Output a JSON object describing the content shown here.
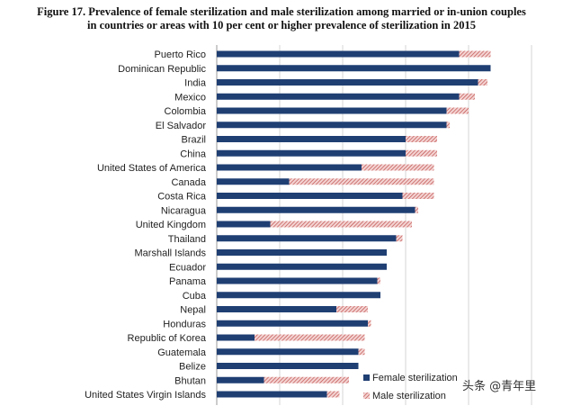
{
  "chart_data": {
    "type": "bar",
    "orientation": "horizontal",
    "stacked": true,
    "title_lines": [
      "Figure 17. Prevalence of female sterilization and male sterilization among married or in-union couples",
      "in countries or areas with 10 per cent or higher prevalence of sterilization in 2015"
    ],
    "categories": [
      "Puerto Rico",
      "Dominican Republic",
      "India",
      "Mexico",
      "Colombia",
      "El Salvador",
      "Brazil",
      "China",
      "United States of America",
      "Canada",
      "Costa Rica",
      "Nicaragua",
      "United Kingdom",
      "Thailand",
      "Marshall Islands",
      "Ecuador",
      "Panama",
      "Cuba",
      "Nepal",
      "Honduras",
      "Republic of Korea",
      "Guatemala",
      "Belize",
      "Bhutan",
      "United States Virgin Islands"
    ],
    "series": [
      {
        "name": "Female sterilization",
        "color": "#1f3f73",
        "values": [
          38.5,
          43.5,
          41.5,
          38.5,
          36.5,
          36.5,
          30.0,
          30.0,
          23.0,
          11.5,
          29.5,
          31.5,
          8.5,
          28.5,
          27.0,
          27.0,
          25.5,
          26.0,
          19.0,
          24.0,
          6.0,
          22.5,
          22.5,
          7.5,
          17.5
        ]
      },
      {
        "name": "Male sterilization",
        "color": "#c0504d",
        "values": [
          5.0,
          0.0,
          1.5,
          2.5,
          3.5,
          0.5,
          5.0,
          5.0,
          11.5,
          23.0,
          5.0,
          0.5,
          22.5,
          1.0,
          0.0,
          0.0,
          0.5,
          0.0,
          5.0,
          0.5,
          17.5,
          1.0,
          0.0,
          13.5,
          2.0
        ]
      }
    ],
    "xlim": [
      0,
      50
    ],
    "grid": true,
    "legend_position": "bottom-right"
  },
  "legend": {
    "female_label": "Female sterilization",
    "male_label": "Male sterilization"
  },
  "watermark": "头条 @青年里"
}
